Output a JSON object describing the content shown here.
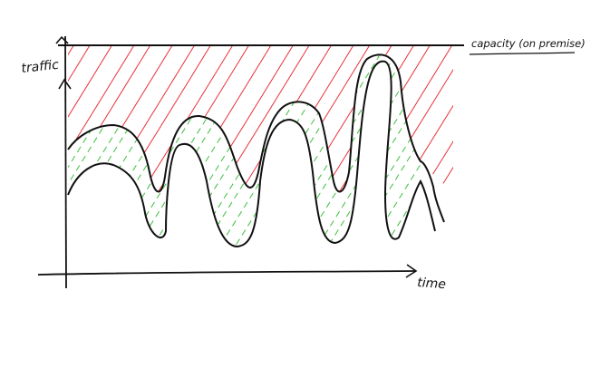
{
  "labels": {
    "y_axis": "traffic",
    "x_axis": "time",
    "capacity": "capacity (on premise)"
  },
  "colors": {
    "ink": "#111111",
    "excess_capacity_hatch": "#e8303a",
    "used_capacity_hatch": "#3cbf3c"
  }
}
